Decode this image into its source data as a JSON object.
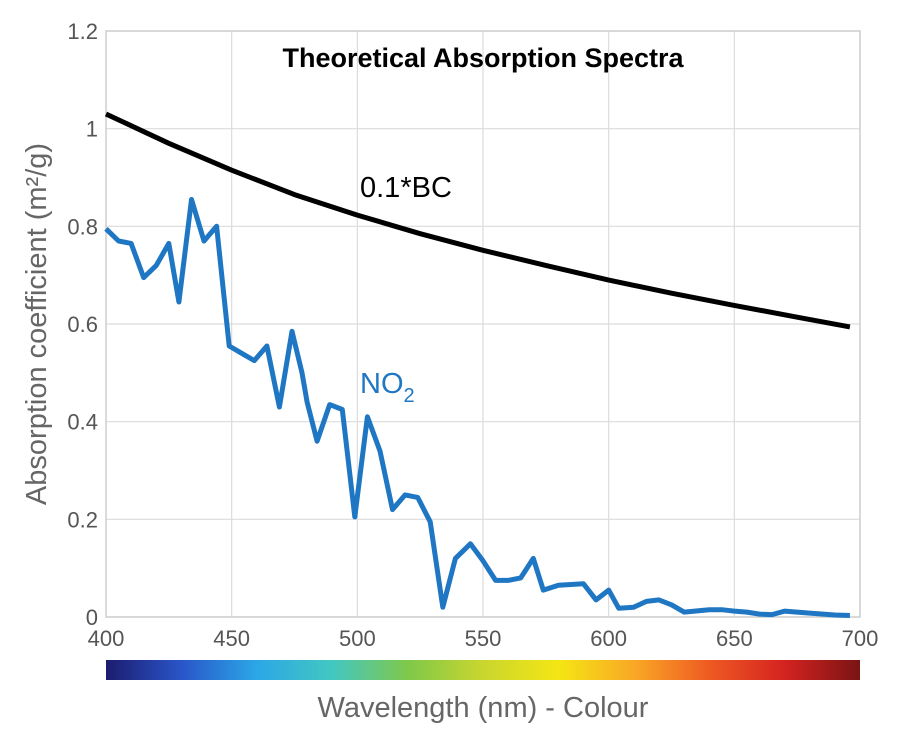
{
  "chart_data": {
    "type": "line",
    "title": "Theoretical Absorption Spectra",
    "xlabel": "Wavelength (nm) - Colour",
    "ylabel": "Absorption coefficient (m²/g)",
    "xlim": [
      400,
      700
    ],
    "ylim": [
      0,
      1.2
    ],
    "xticks": [
      400,
      450,
      500,
      550,
      600,
      650,
      700
    ],
    "yticks": [
      {
        "value": 0,
        "label": "0"
      },
      {
        "value": 0.2,
        "label": "0.2"
      },
      {
        "value": 0.4,
        "label": "0.4"
      },
      {
        "value": 0.6,
        "label": "0.6"
      },
      {
        "value": 0.8,
        "label": "0.8"
      },
      {
        "value": 1,
        "label": "1"
      },
      {
        "value": 1.2,
        "label": "1.2"
      }
    ],
    "grid": true,
    "colorbar": {
      "label": "Wavelength (nm) - Colour",
      "colors": [
        "#1c1c6e",
        "#2a55c8",
        "#2ba7e6",
        "#43c7c2",
        "#7fc84a",
        "#c9d62e",
        "#f5e614",
        "#f9a825",
        "#ee5a22",
        "#d42320",
        "#7a1414"
      ]
    },
    "series": [
      {
        "name": "0.1*BC",
        "label": "0.1*BC",
        "color": "#000000",
        "points": [
          [
            400,
            1.03
          ],
          [
            425,
            0.97
          ],
          [
            450,
            0.915
          ],
          [
            475,
            0.865
          ],
          [
            500,
            0.823
          ],
          [
            525,
            0.785
          ],
          [
            550,
            0.751
          ],
          [
            575,
            0.72
          ],
          [
            600,
            0.69
          ],
          [
            625,
            0.663
          ],
          [
            650,
            0.638
          ],
          [
            675,
            0.614
          ],
          [
            696,
            0.594
          ]
        ]
      },
      {
        "name": "NO2",
        "label": "NO",
        "label_sub": "2",
        "color": "#1f77c4",
        "points": [
          [
            400,
            0.795
          ],
          [
            405,
            0.77
          ],
          [
            410,
            0.765
          ],
          [
            415,
            0.695
          ],
          [
            420,
            0.72
          ],
          [
            425,
            0.765
          ],
          [
            429,
            0.645
          ],
          [
            434,
            0.855
          ],
          [
            439,
            0.77
          ],
          [
            444,
            0.8
          ],
          [
            449,
            0.555
          ],
          [
            454,
            0.54
          ],
          [
            459,
            0.525
          ],
          [
            464,
            0.555
          ],
          [
            469,
            0.43
          ],
          [
            474,
            0.585
          ],
          [
            478,
            0.5
          ],
          [
            480,
            0.44
          ],
          [
            484,
            0.36
          ],
          [
            489,
            0.435
          ],
          [
            494,
            0.425
          ],
          [
            499,
            0.205
          ],
          [
            504,
            0.41
          ],
          [
            509,
            0.34
          ],
          [
            514,
            0.22
          ],
          [
            519,
            0.25
          ],
          [
            524,
            0.245
          ],
          [
            529,
            0.195
          ],
          [
            534,
            0.02
          ],
          [
            539,
            0.12
          ],
          [
            545,
            0.15
          ],
          [
            550,
            0.115
          ],
          [
            555,
            0.075
          ],
          [
            560,
            0.075
          ],
          [
            565,
            0.08
          ],
          [
            570,
            0.12
          ],
          [
            574,
            0.055
          ],
          [
            580,
            0.065
          ],
          [
            590,
            0.068
          ],
          [
            595,
            0.035
          ],
          [
            600,
            0.055
          ],
          [
            604,
            0.018
          ],
          [
            610,
            0.02
          ],
          [
            615,
            0.032
          ],
          [
            620,
            0.035
          ],
          [
            625,
            0.025
          ],
          [
            630,
            0.01
          ],
          [
            640,
            0.015
          ],
          [
            645,
            0.015
          ],
          [
            650,
            0.012
          ],
          [
            655,
            0.01
          ],
          [
            660,
            0.006
          ],
          [
            665,
            0.005
          ],
          [
            670,
            0.012
          ],
          [
            680,
            0.008
          ],
          [
            690,
            0.004
          ],
          [
            696,
            0.003
          ]
        ]
      }
    ]
  }
}
